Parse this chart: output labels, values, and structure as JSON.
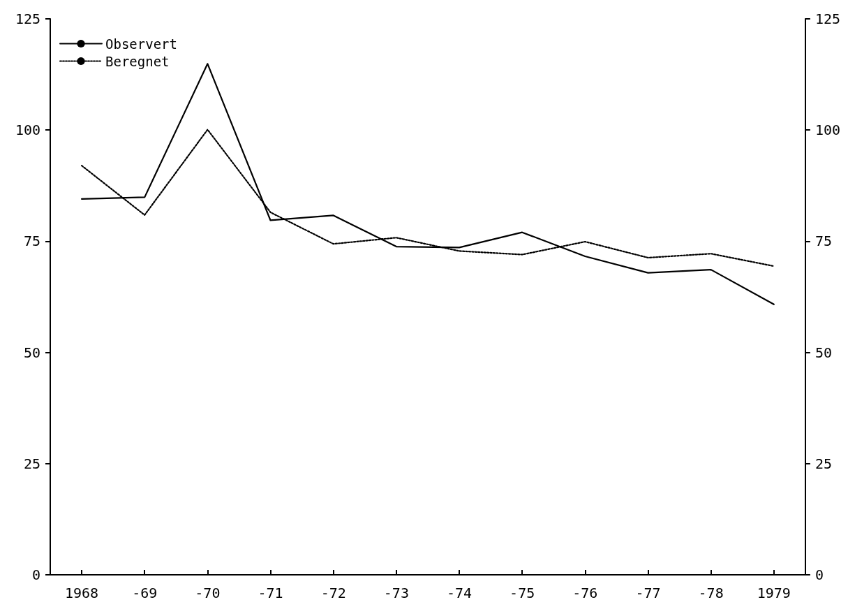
{
  "chart_data": {
    "type": "line",
    "categories": [
      "1968",
      "-69",
      "-70",
      "-71",
      "-72",
      "-73",
      "-74",
      "-75",
      "-76",
      "-77",
      "-78",
      "1979"
    ],
    "series": [
      {
        "name": "Observert",
        "color": "#000000",
        "line_style": "solid",
        "values": [
          84.5,
          84.9,
          114.9,
          79.7,
          80.8,
          73.8,
          73.6,
          77.0,
          71.6,
          67.9,
          68.6,
          60.8
        ]
      },
      {
        "name": "Beregnet",
        "color": "#000000",
        "line_style": "dotted",
        "values": [
          92.0,
          80.9,
          100.1,
          81.5,
          74.4,
          75.8,
          72.8,
          72.0,
          74.9,
          71.3,
          72.2,
          69.4
        ]
      }
    ],
    "ylim": [
      0,
      125
    ],
    "yticks": [
      0,
      25,
      50,
      75,
      100,
      125
    ],
    "y2lim": [
      0,
      125
    ],
    "y2ticks": [
      0,
      25,
      50,
      75,
      100,
      125
    ],
    "grid": false,
    "legend": "top left",
    "marker": "none"
  }
}
